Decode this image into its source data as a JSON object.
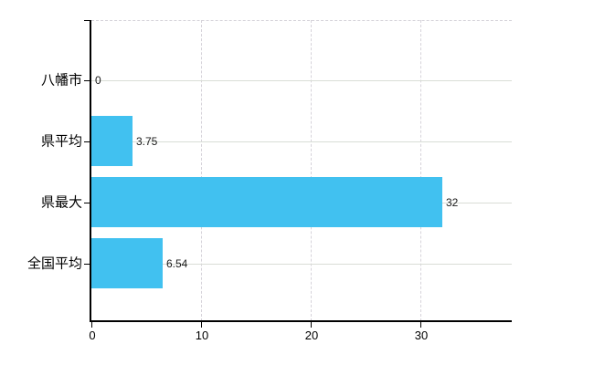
{
  "chart_data": {
    "type": "bar",
    "orientation": "horizontal",
    "title": "",
    "xlabel": "",
    "ylabel": "",
    "categories": [
      "八幡市",
      "県平均",
      "県最大",
      "全国平均"
    ],
    "values": [
      0,
      3.75,
      32,
      6.54
    ],
    "value_labels": [
      "0",
      "3.75",
      "32",
      "6.54"
    ],
    "xticks": [
      0,
      10,
      20,
      30
    ],
    "xtick_labels": [
      "0",
      "10",
      "20",
      "30"
    ],
    "xlim": [
      0,
      38.33
    ],
    "grid": true,
    "legend_position": "none",
    "bar_color": "#41c1f0",
    "axis_color": "#000000",
    "gridline_color": "#d9ddd6",
    "text_color": "#000000",
    "background_color": "#ffffff"
  }
}
